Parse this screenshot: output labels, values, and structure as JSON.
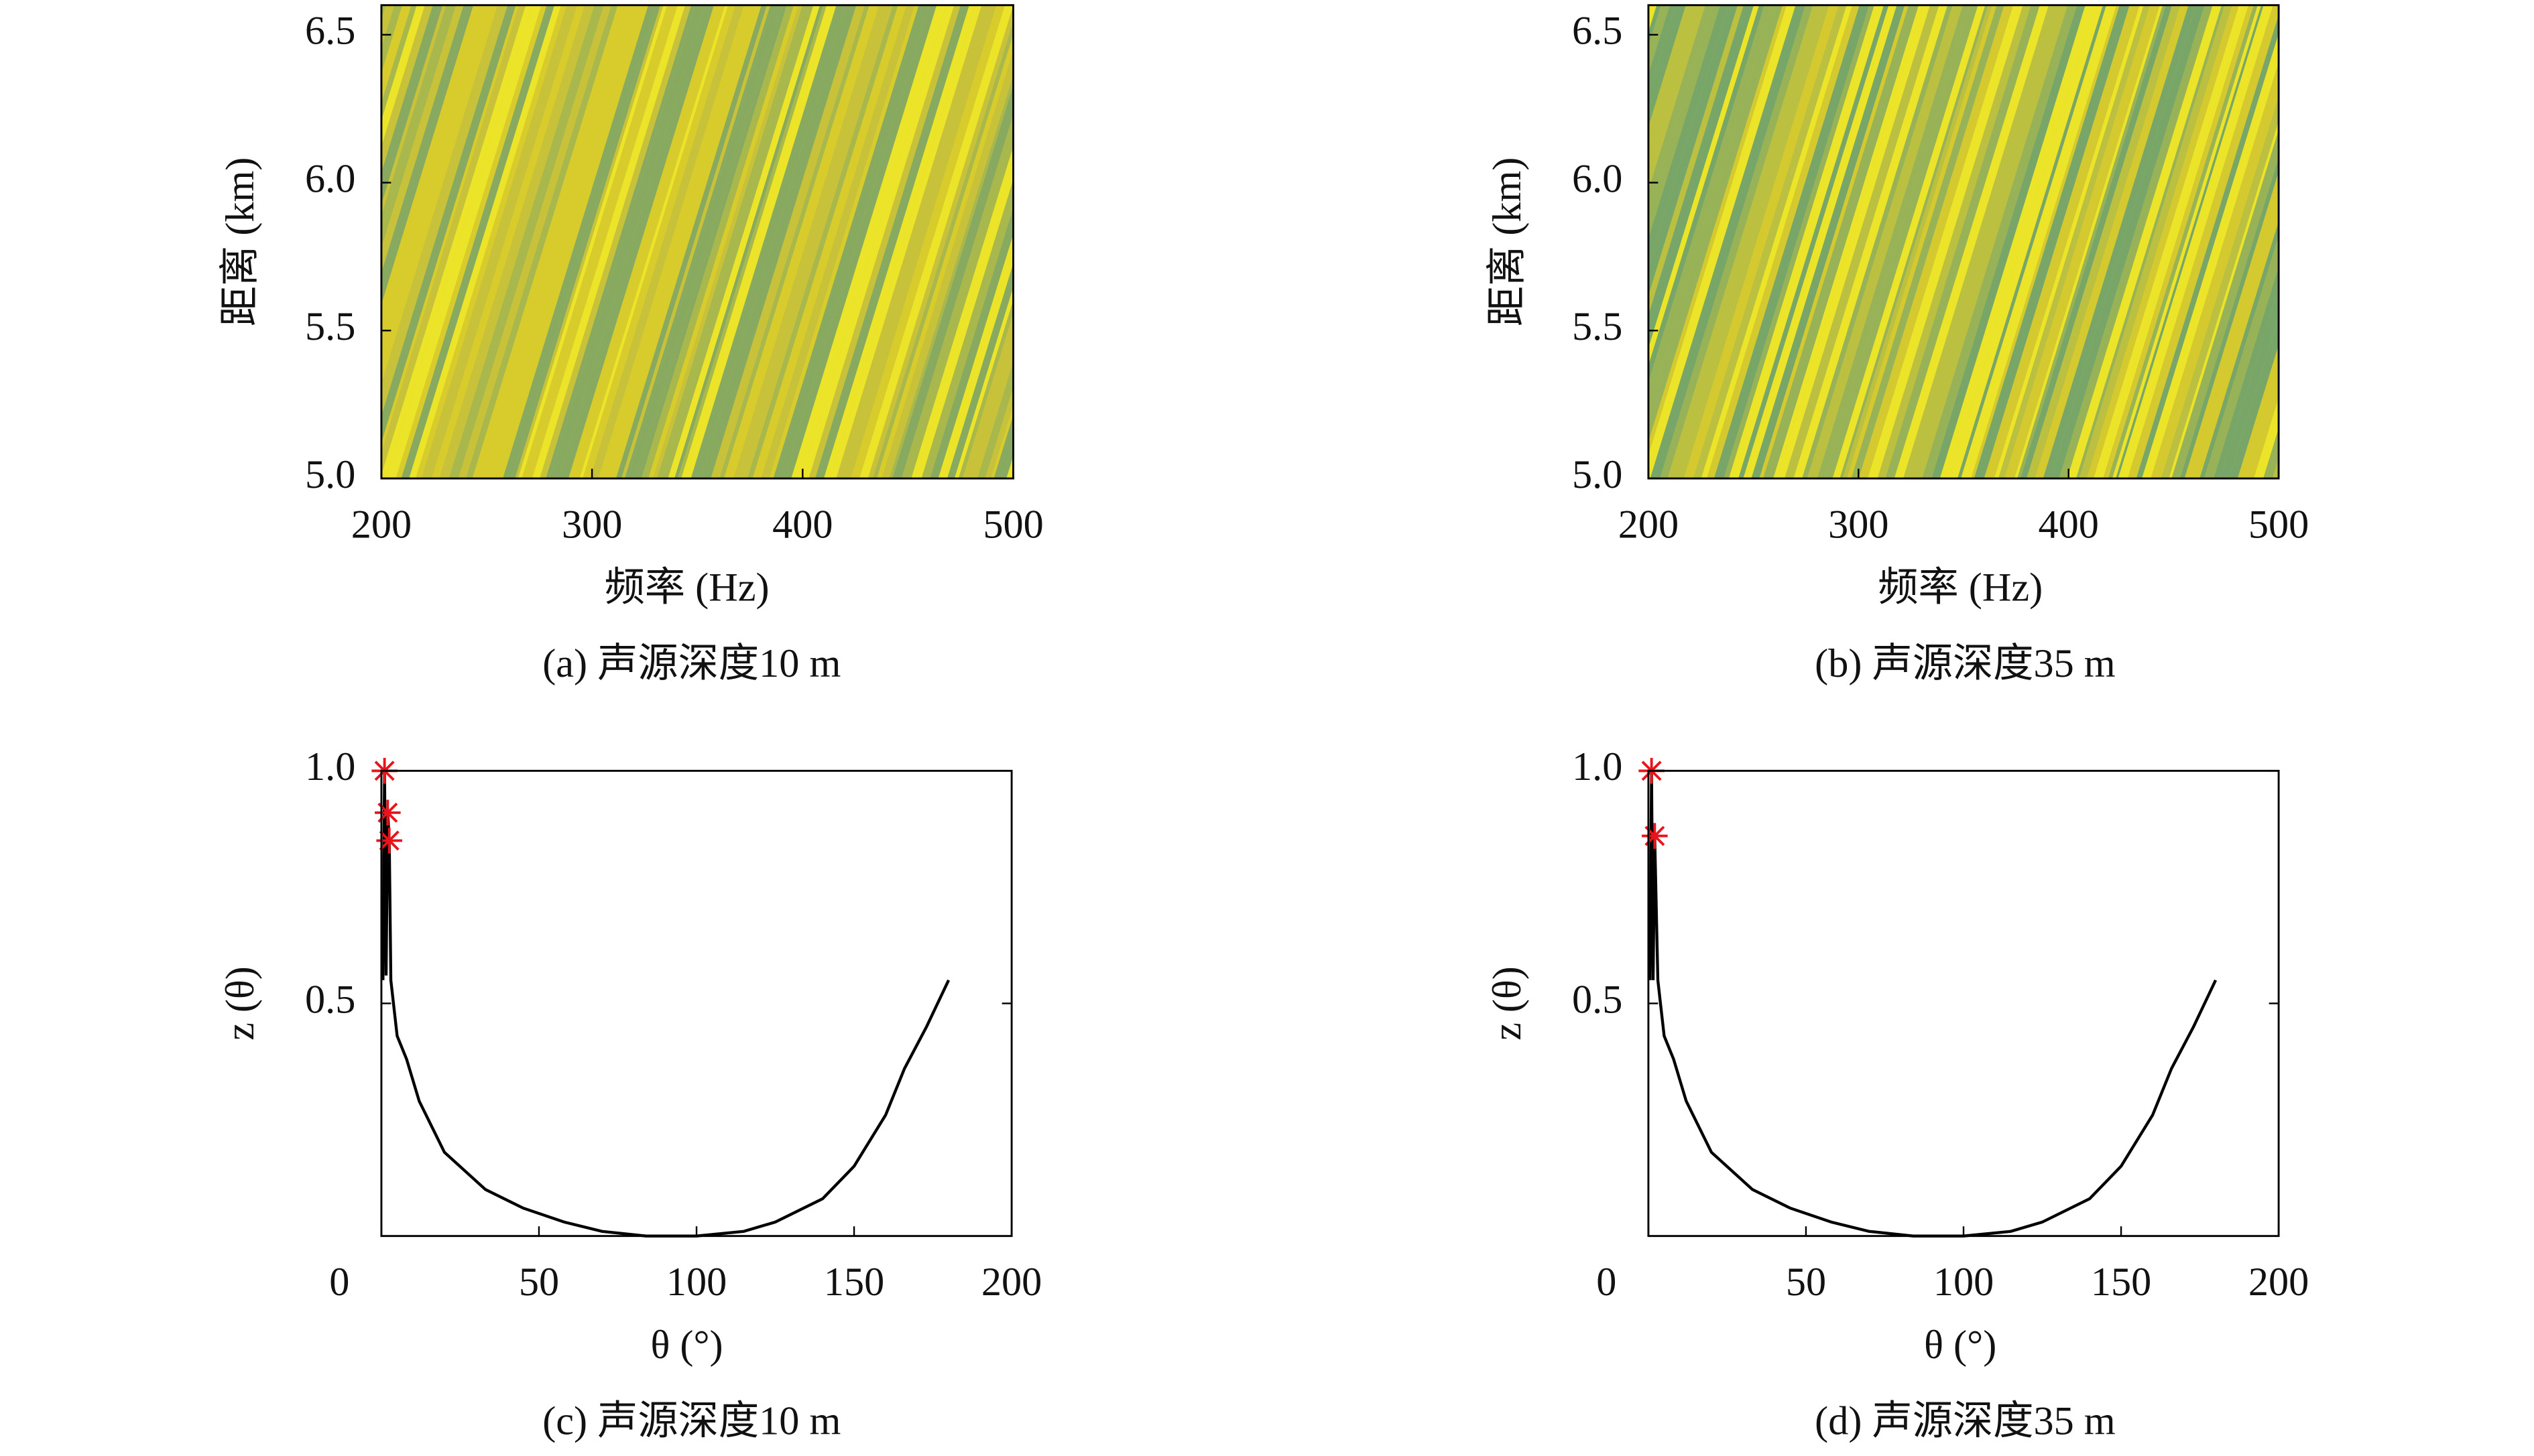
{
  "chart_data": [
    {
      "type": "heatmap",
      "caption": "(a) 声源深度10 m",
      "xlabel": "频率 (Hz)",
      "ylabel": "距离 (km)",
      "xlim": [
        200,
        500
      ],
      "ylim": [
        5,
        6.6
      ],
      "xticks": [
        200,
        300,
        400,
        500
      ],
      "yticks": [
        {
          "value": 5,
          "label": "5.0"
        },
        {
          "value": 5.5,
          "label": "5.5"
        },
        {
          "value": 6,
          "label": "6.0"
        },
        {
          "value": 6.5,
          "label": "6.5"
        }
      ],
      "colors": [
        "#ece428",
        "#d8cc2c",
        "#c8c23a",
        "#a8b84c",
        "#88aa60"
      ]
    },
    {
      "type": "heatmap",
      "caption": "(b) 声源深度35 m",
      "xlabel": "频率 (Hz)",
      "ylabel": "距离 (km)",
      "xlim": [
        200,
        500
      ],
      "ylim": [
        5,
        6.6
      ],
      "xticks": [
        200,
        300,
        400,
        500
      ],
      "yticks": [
        {
          "value": 5,
          "label": "5.0"
        },
        {
          "value": 5.5,
          "label": "5.5"
        },
        {
          "value": 6,
          "label": "6.0"
        },
        {
          "value": 6.5,
          "label": "6.5"
        }
      ],
      "colors": [
        "#ece428",
        "#d4ca30",
        "#bcc040",
        "#98b258",
        "#78a668"
      ]
    },
    {
      "type": "line",
      "caption": "(c) 声源深度10 m",
      "xlabel": "θ (°)",
      "ylabel": "z (θ)",
      "xlim": [
        0,
        200
      ],
      "ylim": [
        0,
        1
      ],
      "xticks": [
        0,
        50,
        100,
        150,
        200
      ],
      "yticks": [
        0.5,
        {
          "value": 1,
          "label": "1.0"
        }
      ],
      "color": "#000000",
      "x": [
        0.5,
        1,
        1.5,
        2,
        2.5,
        3,
        5,
        8,
        12,
        20,
        33,
        45,
        58,
        70,
        84,
        100,
        115,
        125,
        140,
        150,
        160,
        166,
        173,
        180
      ],
      "values": [
        0.55,
        1.0,
        0.56,
        0.91,
        0.85,
        0.55,
        0.43,
        0.38,
        0.29,
        0.18,
        0.1,
        0.06,
        0.03,
        0.01,
        0.0,
        0.0,
        0.01,
        0.03,
        0.08,
        0.15,
        0.26,
        0.36,
        0.45,
        0.55
      ],
      "markers": {
        "color": "#e8141c",
        "x": [
          1,
          2,
          2.5
        ],
        "y": [
          1.0,
          0.91,
          0.85
        ]
      }
    },
    {
      "type": "line",
      "caption": "(d) 声源深度35 m",
      "xlabel": "θ (°)",
      "ylabel": "z (θ)",
      "xlim": [
        0,
        200
      ],
      "ylim": [
        0,
        1
      ],
      "xticks": [
        0,
        50,
        100,
        150,
        200
      ],
      "yticks": [
        0.5,
        {
          "value": 1,
          "label": "1.0"
        }
      ],
      "color": "#000000",
      "x": [
        0.5,
        1,
        1.5,
        2,
        3,
        5,
        8,
        12,
        20,
        33,
        45,
        58,
        70,
        84,
        100,
        115,
        125,
        140,
        150,
        160,
        166,
        173,
        180
      ],
      "values": [
        0.55,
        1.0,
        0.55,
        0.86,
        0.55,
        0.43,
        0.38,
        0.29,
        0.18,
        0.1,
        0.06,
        0.03,
        0.01,
        0.0,
        0.0,
        0.01,
        0.03,
        0.08,
        0.15,
        0.26,
        0.36,
        0.45,
        0.55
      ],
      "markers": {
        "color": "#e8141c",
        "x": [
          1,
          2
        ],
        "y": [
          1.0,
          0.86
        ]
      }
    }
  ]
}
